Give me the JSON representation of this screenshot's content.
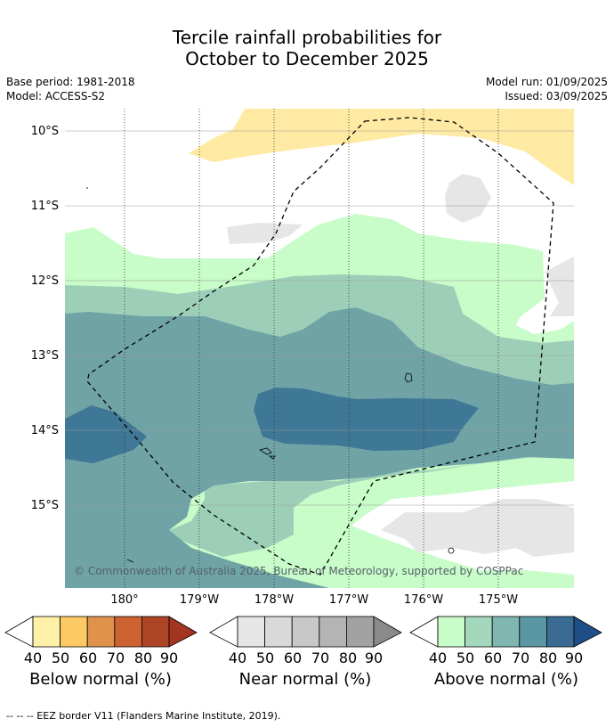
{
  "title_line1": "Tercile rainfall probabilities for",
  "title_line2": "October to December 2025",
  "meta_left": [
    "Base period: 1981-2018",
    "Model: ACCESS-S2"
  ],
  "meta_right": [
    "Model run: 01/09/2025",
    "Issued: 03/09/2025"
  ],
  "copyright": "© Commonwealth of Australia 2025, Bureau of Meteorology, supported by COSPPac",
  "lat_labels": [
    "10°S",
    "11°S",
    "12°S",
    "13°S",
    "14°S",
    "15°S"
  ],
  "lon_labels": [
    "180°",
    "179°W",
    "178°W",
    "177°W",
    "176°W",
    "175°W"
  ],
  "colorbars": [
    {
      "caption": "Below normal (%)",
      "ticks": [
        "40",
        "50",
        "60",
        "70",
        "80",
        "90"
      ],
      "colors": [
        "#fff0a8",
        "#fdc963",
        "#e0924a",
        "#cc6131",
        "#ad4425",
        "#a33521"
      ]
    },
    {
      "caption": "Near normal (%)",
      "ticks": [
        "40",
        "50",
        "60",
        "70",
        "80",
        "90"
      ],
      "colors": [
        "#e6e6e6",
        "#d9d9d9",
        "#c8c8c8",
        "#b4b4b4",
        "#a2a2a2",
        "#8a8a8a"
      ]
    },
    {
      "caption": "Above normal (%)",
      "ticks": [
        "40",
        "50",
        "60",
        "70",
        "80",
        "90"
      ],
      "colors": [
        "#c8fcc8",
        "#a3d8bc",
        "#7fb6b0",
        "#5b96a5",
        "#3a6b93",
        "#1f4f87"
      ]
    }
  ],
  "footer": "--  --  -- EEZ border V11 (Flanders Marine Institute, 2019).",
  "map_colors": {
    "below_40": "#ffeaa3",
    "near_40": "#e6e6e6",
    "above_40": "#c8fcc8",
    "above_50": "#9dcfb8",
    "above_60": "#6fa3a6",
    "above_70": "#3f7796"
  }
}
